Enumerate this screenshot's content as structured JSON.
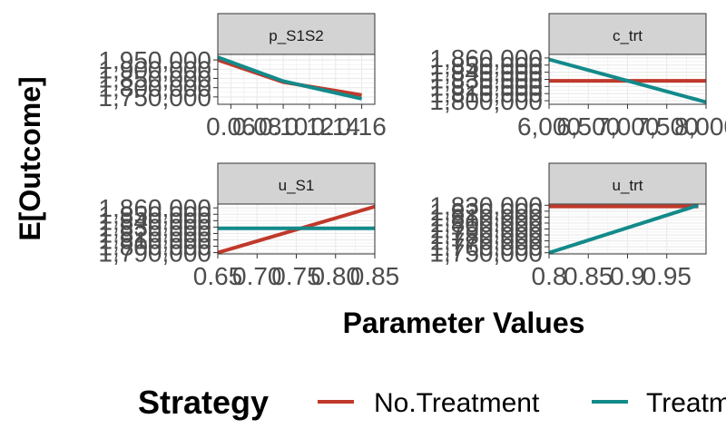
{
  "chart_data": {
    "type": "line",
    "xlabel": "Parameter Values",
    "ylabel": "E[Outcome]",
    "legend": {
      "title": "Strategy",
      "position": "bottom",
      "entries": [
        "No.Treatment",
        "Treatment"
      ]
    },
    "colors": {
      "No.Treatment": "#c0392b",
      "Treatment": "#138a8a",
      "strip_bg": "#d3d3d3",
      "grid": "#ebebeb",
      "text": "#4d4d4d"
    },
    "grid": true,
    "panels": [
      {
        "strip": "p_S1S2",
        "x_ticks": [
          "0.06",
          "0.08",
          "0.10",
          "0.12",
          "0.14",
          "0.16"
        ],
        "y_ticks": [
          "1,750,000",
          "1,800,000",
          "1,850,000",
          "1,900,000",
          "1,950,000"
        ],
        "xlim": [
          0.05,
          0.17
        ],
        "ylim": [
          1710000,
          1980000
        ],
        "series": [
          {
            "name": "No.Treatment",
            "x": [
              0.05,
              0.1,
              0.16
            ],
            "y": [
              1950000,
              1830000,
              1760000
            ]
          },
          {
            "name": "Treatment",
            "x": [
              0.05,
              0.1,
              0.16
            ],
            "y": [
              1965000,
              1835000,
              1740000
            ]
          }
        ]
      },
      {
        "strip": "c_trt",
        "x_ticks": [
          "6,000",
          "6,500",
          "7,000",
          "7,500",
          "8,000"
        ],
        "y_ticks": [
          "1,800,000",
          "1,810,000",
          "1,820,000",
          "1,830,000",
          "1,840,000",
          "1,850,000",
          "1,860,000"
        ],
        "xlim": [
          6000,
          8000
        ],
        "ylim": [
          1795000,
          1865000
        ],
        "series": [
          {
            "name": "No.Treatment",
            "x": [
              6000,
              8000
            ],
            "y": [
              1828000,
              1828000
            ]
          },
          {
            "name": "Treatment",
            "x": [
              6000,
              8000
            ],
            "y": [
              1858000,
              1798000
            ]
          }
        ]
      },
      {
        "strip": "u_S1",
        "x_ticks": [
          "0.65",
          "0.70",
          "0.75",
          "0.80",
          "0.85"
        ],
        "y_ticks": [
          "1,790,000",
          "1,800,000",
          "1,810,000",
          "1,820,000",
          "1,830,000",
          "1,840,000",
          "1,850,000",
          "1,860,000"
        ],
        "xlim": [
          0.65,
          0.85
        ],
        "ylim": [
          1788000,
          1866000
        ],
        "series": [
          {
            "name": "No.Treatment",
            "x": [
              0.65,
              0.85
            ],
            "y": [
              1790000,
              1862000
            ]
          },
          {
            "name": "Treatment",
            "x": [
              0.65,
              0.85
            ],
            "y": [
              1828000,
              1828000
            ]
          }
        ]
      },
      {
        "strip": "u_trt",
        "x_ticks": [
          "0.8",
          "0.85",
          "0.9",
          "0.95"
        ],
        "y_ticks": [
          "1,750,000",
          "1,760,000",
          "1,770,000",
          "1,780,000",
          "1,790,000",
          "1,800,000",
          "1,810,000",
          "1,820,000",
          "1,830,000"
        ],
        "xlim": [
          0.8,
          1.0
        ],
        "ylim": [
          1748000,
          1832000
        ],
        "series": [
          {
            "name": "No.Treatment",
            "x": [
              0.8,
              0.99
            ],
            "y": [
              1828000,
              1828000
            ]
          },
          {
            "name": "Treatment",
            "x": [
              0.8,
              0.99
            ],
            "y": [
              1750000,
              1830000
            ]
          }
        ]
      }
    ]
  }
}
